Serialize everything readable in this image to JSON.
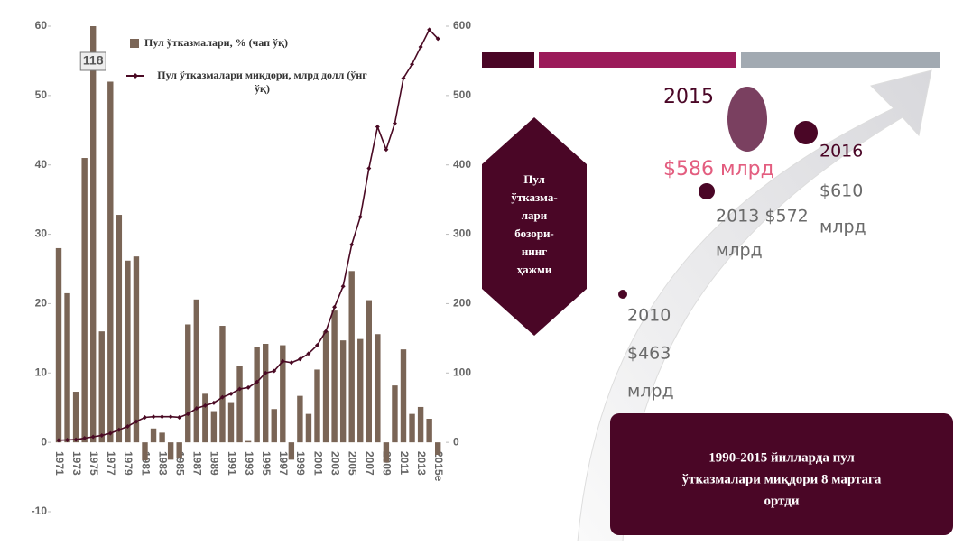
{
  "chart_data": {
    "type": "bar",
    "categories": [
      "1971",
      null,
      "1973",
      null,
      "1975",
      null,
      "1977",
      null,
      "1979",
      null,
      "1981",
      null,
      "1983",
      null,
      "1985",
      null,
      "1987",
      null,
      "1989",
      null,
      "1991",
      null,
      "1993",
      null,
      "1995",
      null,
      "1997",
      null,
      "1999",
      null,
      "2001",
      null,
      "2003",
      null,
      "2005",
      null,
      "2007",
      null,
      "2009",
      null,
      "2011",
      null,
      "2013",
      null,
      "2015e"
    ],
    "series": [
      {
        "name": "Пул ўтказмалари, % (чап ўқ)",
        "type": "bar",
        "color": "#7a6556",
        "values": [
          28,
          21.5,
          7.3,
          41,
          118,
          16,
          52,
          32.8,
          26.2,
          26.8,
          -2.6,
          2,
          1.4,
          -2.5,
          -2.2,
          17,
          20.6,
          7,
          4.5,
          16.8,
          5.8,
          11,
          0.2,
          13.8,
          14.2,
          4.8,
          14,
          -2.5,
          6.7,
          4.1,
          10.5,
          16,
          19,
          14.7,
          24.7,
          14.9,
          20.5,
          15.6,
          -2.9,
          8.2,
          13.4,
          4.1,
          5.1,
          3.4,
          -1.8
        ],
        "value_labels": [
          null,
          null,
          null,
          null,
          "118",
          null,
          null,
          null,
          null,
          null,
          null,
          null,
          null,
          null,
          null,
          null,
          null,
          null,
          null,
          null,
          null,
          null,
          null,
          null,
          null,
          null,
          null,
          null,
          null,
          null,
          null,
          null,
          null,
          null,
          null,
          null,
          null,
          null,
          null,
          null,
          null,
          null,
          null,
          null,
          null
        ]
      },
      {
        "name": "Пул ўтказмалари миқдори, млрд долл (ўнг ўқ)",
        "type": "line",
        "axis": "y2",
        "color": "#4a0a24",
        "values": [
          3,
          3.5,
          4,
          6,
          8,
          10,
          13,
          18,
          23,
          30,
          36,
          37,
          37,
          37,
          36,
          41,
          49,
          53,
          57,
          65,
          70,
          77,
          79,
          87,
          100,
          103,
          117,
          115,
          120,
          128,
          140,
          160,
          195,
          225,
          285,
          325,
          395,
          455,
          422,
          460,
          525,
          545,
          570,
          595,
          582
        ]
      }
    ],
    "ylim": [
      -10,
      60
    ],
    "yticks": [
      -10,
      0,
      10,
      20,
      30,
      40,
      50,
      60
    ],
    "y2lim": [
      -100,
      600
    ],
    "y2ticks": [
      0,
      100,
      200,
      300,
      400,
      500,
      600
    ]
  },
  "infographic": {
    "hexagon": [
      "Пул",
      "ўтказма-",
      "лари",
      "бозори-",
      "нинг",
      "ҳажми"
    ],
    "points": [
      {
        "lines": [
          "2015",
          "$586 млрд"
        ]
      },
      {
        "lines": [
          "2013 $572",
          "млрд"
        ]
      },
      {
        "lines": [
          "2016",
          "$610",
          "млрд"
        ]
      },
      {
        "lines": [
          "2010",
          "$463",
          "млрд"
        ]
      }
    ],
    "box": [
      "1990-2015 йилларда пул",
      "ўтказмалари миқдори 8 мартага",
      "ортди"
    ]
  }
}
